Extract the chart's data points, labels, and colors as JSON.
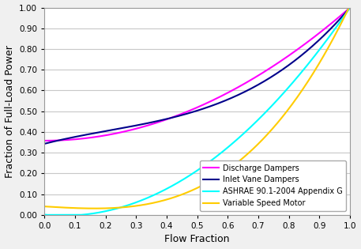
{
  "title": "",
  "xlabel": "Flow Fraction",
  "ylabel": "Fraction of Full-Load Power",
  "xlim": [
    0.0,
    1.0
  ],
  "ylim": [
    0.0,
    1.0
  ],
  "yticks": [
    0.0,
    0.1,
    0.2,
    0.3,
    0.4,
    0.5,
    0.6,
    0.7,
    0.8,
    0.9,
    1.0
  ],
  "xticks": [
    0.0,
    0.1,
    0.2,
    0.3,
    0.4,
    0.5,
    0.6,
    0.7,
    0.8,
    0.9,
    1.0
  ],
  "curves": [
    {
      "label": "Discharge Dampers",
      "color": "#ff00ff",
      "coeffs": [
        0.358,
        0.0,
        0.642,
        0.0,
        0.0
      ]
    },
    {
      "label": "Inlet Vane Dampers",
      "color": "#00008b",
      "coeffs": [
        0.343,
        0.374,
        -0.5,
        0.783,
        0.0
      ]
    },
    {
      "label": "ASHRAE 90.1-2004 Appendix G",
      "color": "#00ffff",
      "coeffs": [
        0.0013,
        -0.147,
        1.146,
        0.0,
        0.0
      ]
    },
    {
      "label": "Variable Speed Motor",
      "color": "#ffcc00",
      "coeffs": [
        0.0408,
        -0.088,
        0.007,
        1.0512,
        -0.0
      ]
    }
  ],
  "legend_loc": "lower right",
  "grid_color": "#c8c8c8",
  "bg_color": "#f0f0f0",
  "plot_bg": "#ffffff",
  "linewidth": 1.5,
  "legend_fontsize": 7,
  "axis_label_fontsize": 9,
  "tick_fontsize": 7.5
}
